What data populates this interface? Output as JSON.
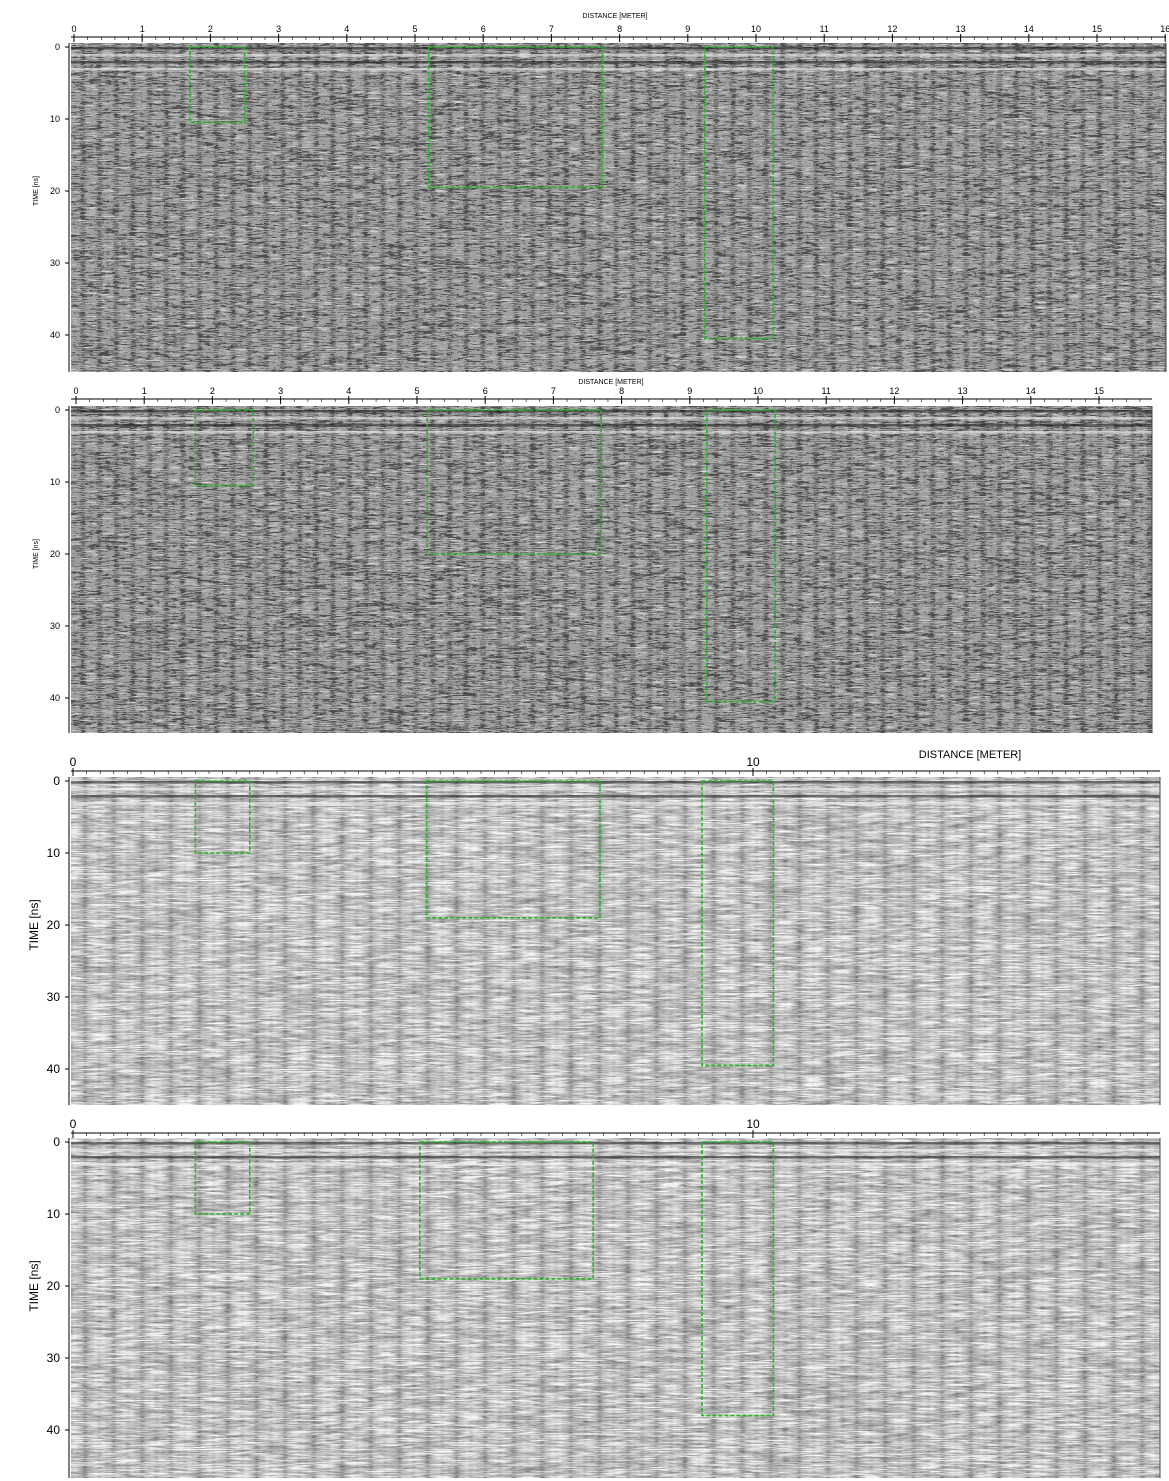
{
  "figure": {
    "panels": [
      {
        "id": "p1",
        "xlabel": "DISTANCE [METER]",
        "ylabel": "TIME [ns]",
        "x_ticks": [
          0,
          1,
          2,
          3,
          4,
          5,
          6,
          7,
          8,
          9,
          10,
          11,
          12,
          13,
          14,
          15,
          16
        ],
        "y_ticks": [
          0,
          10,
          20,
          30,
          40
        ],
        "texture": "blocky",
        "boxes": [
          {
            "name": "box-a",
            "x0": 1.7,
            "x1": 2.5,
            "t0": 0,
            "t1": 10.5
          },
          {
            "name": "box-b",
            "x0": 5.2,
            "x1": 7.75,
            "t0": 0,
            "t1": 19.5
          },
          {
            "name": "box-c",
            "x0": 9.25,
            "x1": 10.25,
            "t0": 0,
            "t1": 40.5
          }
        ]
      },
      {
        "id": "p2",
        "xlabel": "DISTANCE [METER]",
        "ylabel": "TIME [ns]",
        "x_ticks": [
          0,
          1,
          2,
          3,
          4,
          5,
          6,
          7,
          8,
          9,
          10,
          11,
          12,
          13,
          14,
          15
        ],
        "y_ticks": [
          0,
          10,
          20,
          30,
          40
        ],
        "texture": "blocky",
        "boxes": [
          {
            "name": "box-a",
            "x0": 1.75,
            "x1": 2.6,
            "t0": 0,
            "t1": 10.5
          },
          {
            "name": "box-b",
            "x0": 5.15,
            "x1": 7.7,
            "t0": 0,
            "t1": 20
          },
          {
            "name": "box-c",
            "x0": 9.25,
            "x1": 10.25,
            "t0": 0,
            "t1": 40.5
          }
        ]
      },
      {
        "id": "p3",
        "xlabel": "DISTANCE [METER]",
        "ylabel": "TIME [ns]",
        "x_ticks": [
          0,
          10
        ],
        "y_ticks": [
          0,
          10,
          20,
          30,
          40
        ],
        "texture": "smooth",
        "boxes": [
          {
            "name": "box-a",
            "x0": 1.8,
            "x1": 2.6,
            "t0": 0,
            "t1": 10
          },
          {
            "name": "box-b",
            "x0": 5.2,
            "x1": 7.75,
            "t0": 0,
            "t1": 19
          },
          {
            "name": "box-c",
            "x0": 9.25,
            "x1": 10.3,
            "t0": 0,
            "t1": 39.5
          }
        ]
      },
      {
        "id": "p4",
        "xlabel": "",
        "ylabel": "TIME [ns]",
        "x_ticks": [
          0,
          10
        ],
        "y_ticks": [
          0,
          10,
          20,
          30,
          40
        ],
        "texture": "smooth",
        "boxes": [
          {
            "name": "box-a",
            "x0": 1.8,
            "x1": 2.6,
            "t0": 0,
            "t1": 10
          },
          {
            "name": "box-b",
            "x0": 5.1,
            "x1": 7.65,
            "t0": 0,
            "t1": 19
          },
          {
            "name": "box-c",
            "x0": 9.25,
            "x1": 10.3,
            "t0": 0,
            "t1": 38
          }
        ]
      }
    ],
    "colors": {
      "annotation_box": "#22b422",
      "axis": "#000000",
      "background": "#ffffff"
    }
  }
}
